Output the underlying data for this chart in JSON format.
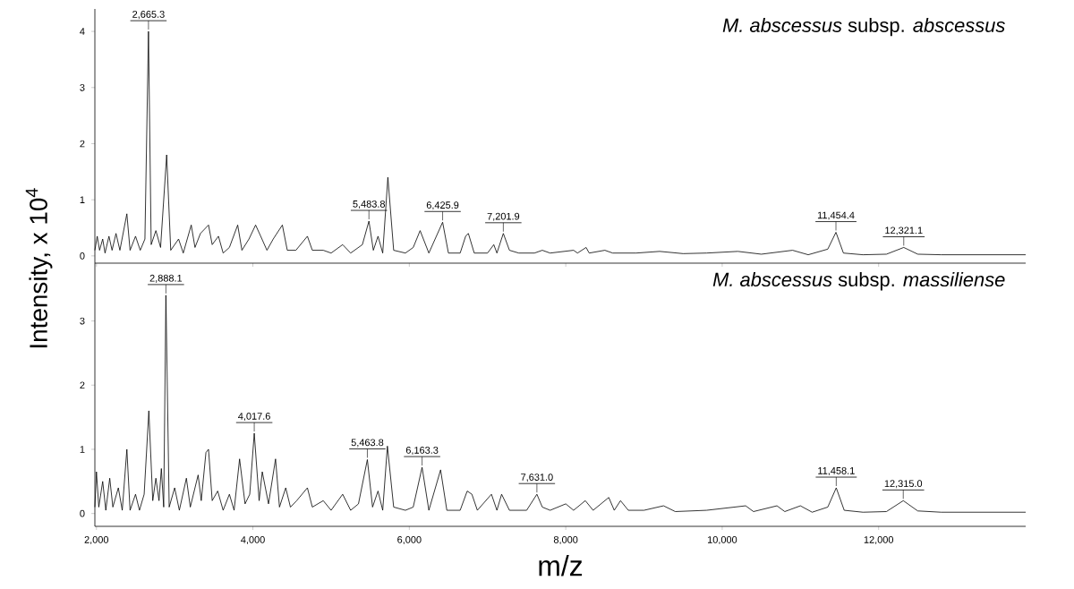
{
  "chart_data": [
    {
      "type": "line",
      "title": "*M. abscessus* subsp. *abscessus*",
      "ylabel": "Intensity, x 10$^{4}$",
      "tick_labels": "y",
      "xlim": [
        1980,
        13880
      ],
      "xticks": [
        {
          "value": 2000,
          "label": null
        },
        {
          "value": 4000,
          "label": null
        },
        {
          "value": 6000,
          "label": null
        },
        {
          "value": 8000,
          "label": null
        },
        {
          "value": 10000,
          "label": null
        },
        {
          "value": 12000,
          "label": null
        }
      ],
      "ylim": [
        -0.13,
        4.4
      ],
      "yticks": [
        0,
        1,
        2,
        3,
        4
      ],
      "series": [
        {
          "color": "#000000",
          "x": [
            1980,
            2010,
            2040,
            2080,
            2110,
            2160,
            2200,
            2250,
            2300,
            2389,
            2430,
            2500,
            2560,
            2620,
            2665.3,
            2700,
            2760,
            2820,
            2898,
            2950,
            3050,
            3110,
            3212,
            3260,
            3330,
            3433,
            3480,
            3560,
            3620,
            3700,
            3806,
            3860,
            3950,
            4035,
            4100,
            4180,
            4260,
            4377,
            4440,
            4550,
            4697,
            4760,
            4900,
            5000,
            5148,
            5250,
            5400,
            5483.8,
            5540,
            5600,
            5660,
            5726,
            5800,
            5950,
            6050,
            6138,
            6250,
            6425.9,
            6500,
            6650,
            6720,
            6755,
            6830,
            7000,
            7080,
            7120,
            7201.9,
            7280,
            7400,
            7600,
            7700,
            7800,
            8100,
            8150,
            8260,
            8300,
            8500,
            8600,
            8900,
            9200,
            9500,
            9800,
            10200,
            10500,
            10900,
            11100,
            11350,
            11454.4,
            11550,
            11800,
            12100,
            12321.1,
            12500,
            12800,
            13200,
            13600,
            13880
          ],
          "values": [
            0.1,
            0.35,
            0.1,
            0.3,
            0.05,
            0.35,
            0.1,
            0.4,
            0.1,
            0.75,
            0.1,
            0.35,
            0.1,
            0.3,
            4.0,
            0.2,
            0.45,
            0.15,
            1.8,
            0.1,
            0.3,
            0.05,
            0.55,
            0.15,
            0.4,
            0.55,
            0.2,
            0.35,
            0.05,
            0.15,
            0.55,
            0.1,
            0.3,
            0.55,
            0.35,
            0.1,
            0.3,
            0.55,
            0.1,
            0.1,
            0.35,
            0.1,
            0.1,
            0.05,
            0.2,
            0.05,
            0.2,
            0.62,
            0.1,
            0.35,
            0.05,
            1.4,
            0.1,
            0.05,
            0.15,
            0.45,
            0.05,
            0.6,
            0.05,
            0.05,
            0.35,
            0.4,
            0.05,
            0.05,
            0.2,
            0.05,
            0.4,
            0.1,
            0.05,
            0.05,
            0.1,
            0.05,
            0.1,
            0.05,
            0.15,
            0.05,
            0.1,
            0.05,
            0.05,
            0.08,
            0.04,
            0.05,
            0.08,
            0.03,
            0.1,
            0.02,
            0.12,
            0.42,
            0.05,
            0.02,
            0.03,
            0.15,
            0.03,
            0.02,
            0.02,
            0.02,
            0.02
          ]
        }
      ],
      "annotations": [
        {
          "text": "2,665.3",
          "x": 2665.3,
          "y": 4.0
        },
        {
          "text": "5,483.8",
          "x": 5483.8,
          "y": 0.62
        },
        {
          "text": "6,425.9",
          "x": 6425.9,
          "y": 0.6
        },
        {
          "text": "7,201.9",
          "x": 7201.9,
          "y": 0.4
        },
        {
          "text": "11,454.4",
          "x": 11454.4,
          "y": 0.42
        },
        {
          "text": "12,321.1",
          "x": 12321.1,
          "y": 0.15
        }
      ]
    },
    {
      "type": "line",
      "title": "*M. abscessus* subsp. *massiliense*",
      "xlabel": "m/z",
      "xlim": [
        1980,
        13880
      ],
      "xticks": [
        {
          "value": 2000,
          "label": "2,000"
        },
        {
          "value": 4000,
          "label": "4,000"
        },
        {
          "value": 6000,
          "label": "6,000"
        },
        {
          "value": 8000,
          "label": "8,000"
        },
        {
          "value": 10000,
          "label": "10,000"
        },
        {
          "value": 12000,
          "label": "12,000"
        }
      ],
      "ylim": [
        -0.2,
        3.9
      ],
      "yticks": [
        0,
        1,
        2,
        3
      ],
      "series": [
        {
          "color": "#000000",
          "x": [
            1980,
            2000,
            2030,
            2080,
            2120,
            2170,
            2210,
            2280,
            2330,
            2389,
            2430,
            2500,
            2550,
            2610,
            2670,
            2720,
            2760,
            2800,
            2830,
            2860,
            2888.1,
            2930,
            3000,
            3060,
            3150,
            3200,
            3300,
            3340,
            3400,
            3433,
            3480,
            3550,
            3620,
            3700,
            3760,
            3830,
            3900,
            3960,
            4017.6,
            4080,
            4120,
            4200,
            4290,
            4340,
            4420,
            4480,
            4560,
            4697,
            4760,
            4900,
            5000,
            5148,
            5250,
            5350,
            5463.8,
            5530,
            5600,
            5660,
            5720,
            5800,
            5950,
            6050,
            6163.3,
            6250,
            6400,
            6480,
            6650,
            6740,
            6800,
            6870,
            7050,
            7120,
            7180,
            7280,
            7500,
            7631,
            7700,
            7800,
            8000,
            8100,
            8250,
            8350,
            8550,
            8620,
            8700,
            8800,
            9000,
            9250,
            9400,
            9800,
            10300,
            10400,
            10700,
            10800,
            11000,
            11150,
            11350,
            11458.1,
            11560,
            11800,
            12100,
            12315,
            12500,
            12800,
            13200,
            13600,
            13880
          ],
          "values": [
            0.1,
            0.65,
            0.1,
            0.5,
            0.05,
            0.55,
            0.1,
            0.4,
            0.05,
            1.0,
            0.05,
            0.3,
            0.05,
            0.3,
            1.6,
            0.2,
            0.55,
            0.2,
            0.7,
            0.1,
            3.4,
            0.1,
            0.4,
            0.05,
            0.55,
            0.1,
            0.6,
            0.2,
            0.95,
            1.0,
            0.2,
            0.35,
            0.05,
            0.3,
            0.05,
            0.85,
            0.15,
            0.3,
            1.25,
            0.2,
            0.65,
            0.15,
            0.85,
            0.1,
            0.4,
            0.1,
            0.2,
            0.4,
            0.1,
            0.2,
            0.05,
            0.3,
            0.05,
            0.15,
            0.84,
            0.1,
            0.35,
            0.05,
            1.05,
            0.1,
            0.05,
            0.1,
            0.72,
            0.05,
            0.68,
            0.05,
            0.05,
            0.35,
            0.3,
            0.05,
            0.3,
            0.05,
            0.3,
            0.05,
            0.05,
            0.3,
            0.1,
            0.05,
            0.15,
            0.05,
            0.2,
            0.05,
            0.25,
            0.05,
            0.2,
            0.05,
            0.05,
            0.12,
            0.03,
            0.05,
            0.12,
            0.03,
            0.12,
            0.03,
            0.12,
            0.02,
            0.1,
            0.4,
            0.05,
            0.02,
            0.03,
            0.2,
            0.04,
            0.02,
            0.02,
            0.02,
            0.02
          ]
        }
      ],
      "annotations": [
        {
          "text": "2,888.1",
          "x": 2888.1,
          "y": 3.4
        },
        {
          "text": "4,017.6",
          "x": 4017.6,
          "y": 1.25
        },
        {
          "text": "5,463.8",
          "x": 5463.8,
          "y": 0.84
        },
        {
          "text": "6,163.3",
          "x": 6163.3,
          "y": 0.72
        },
        {
          "text": "7,631.0",
          "x": 7631.0,
          "y": 0.3
        },
        {
          "text": "11,458.1",
          "x": 11458.1,
          "y": 0.4
        },
        {
          "text": "12,315.0",
          "x": 12315.0,
          "y": 0.2
        }
      ]
    }
  ]
}
